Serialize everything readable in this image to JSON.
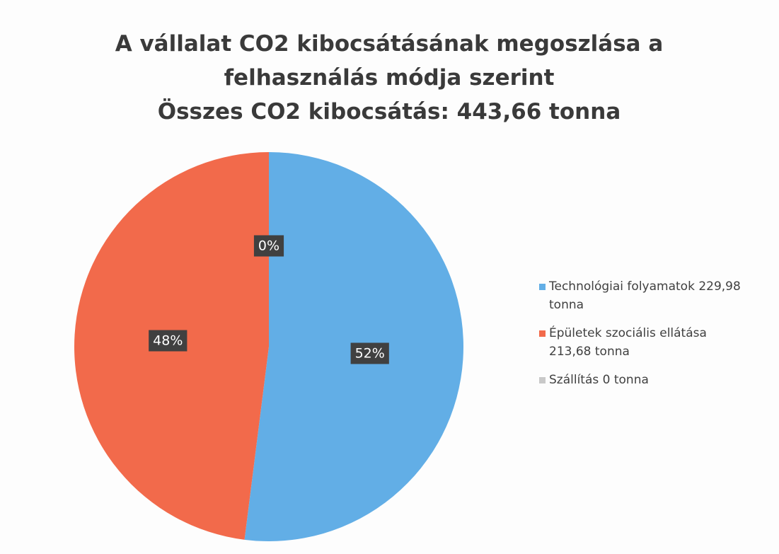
{
  "chart_data": {
    "type": "pie",
    "title": "A vállalat CO2 kibocsátásának megoszlása a felhasználás módja szerint",
    "subtitle": "Összes CO2 kibocsátás: 443,66 tonna",
    "categories": [
      "Technológiai folyamatok 229,98 tonna",
      "Épületek szociális ellátása 213,68 tonna",
      "Szállítás 0 tonna"
    ],
    "values": [
      52,
      48,
      0
    ],
    "value_labels": [
      "52%",
      "48%",
      "0%"
    ],
    "colors": [
      "#62aee6",
      "#f26a4b",
      "#c9c9c9"
    ],
    "legend": "right"
  }
}
